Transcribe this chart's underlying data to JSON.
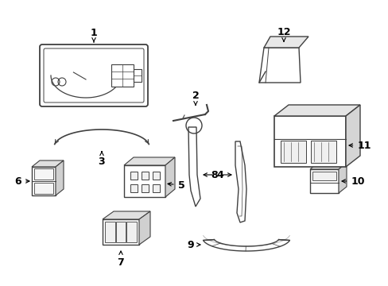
{
  "background_color": "#ffffff",
  "line_color": "#404040",
  "text_color": "#000000",
  "figsize": [
    4.89,
    3.6
  ],
  "dpi": 100
}
